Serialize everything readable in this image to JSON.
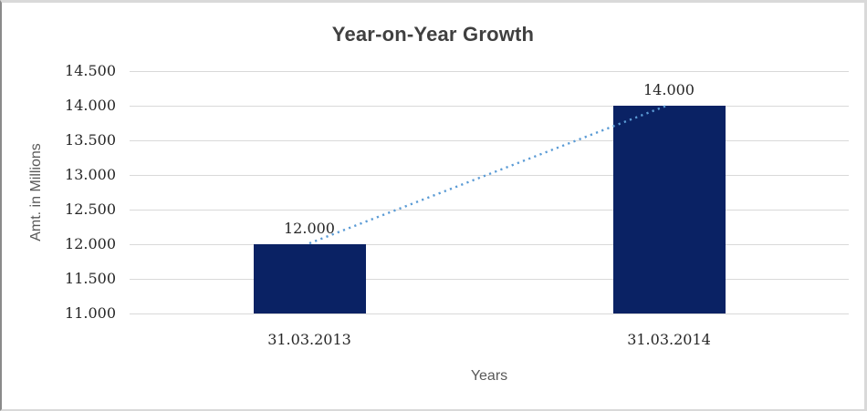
{
  "chart_data": {
    "type": "bar",
    "title": "Year-on-Year Growth",
    "xlabel": "Years",
    "ylabel": "Amt. in Millions",
    "categories": [
      "31.03.2013",
      "31.03.2014"
    ],
    "values": [
      12000,
      14000
    ],
    "value_labels": [
      "12.000",
      "14.000"
    ],
    "ylim": [
      11000,
      14500
    ],
    "ytick_step": 500,
    "yticks": [
      {
        "value": 14500,
        "label": "14.500"
      },
      {
        "value": 14000,
        "label": "14.000"
      },
      {
        "value": 13500,
        "label": "13.500"
      },
      {
        "value": 13000,
        "label": "13.000"
      },
      {
        "value": 12500,
        "label": "12.500"
      },
      {
        "value": 12000,
        "label": "12.000"
      },
      {
        "value": 11500,
        "label": "11.500"
      },
      {
        "value": 11000,
        "label": "11.000"
      }
    ],
    "grid": "horizontal",
    "legend": "none",
    "bar_color": "#0A2264",
    "trendline": {
      "type": "linear",
      "style": "dotted",
      "color": "#5B9BD5"
    }
  },
  "colors": {
    "background": "#FFFFFF",
    "border": "#D9D9D9",
    "gridline": "#D9D9D9",
    "title": "#404040",
    "axis_title": "#595959",
    "tick_label": "#262626"
  }
}
